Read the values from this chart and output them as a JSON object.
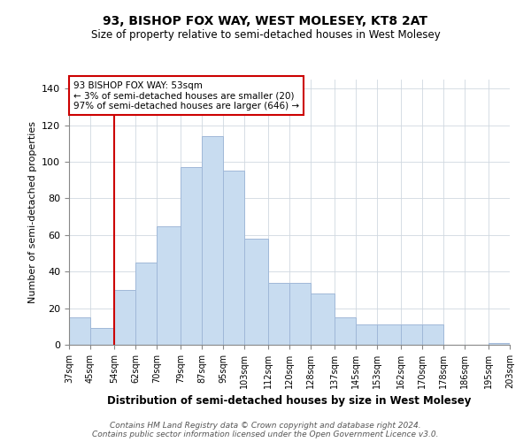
{
  "title": "93, BISHOP FOX WAY, WEST MOLESEY, KT8 2AT",
  "subtitle": "Size of property relative to semi-detached houses in West Molesey",
  "xlabel": "Distribution of semi-detached houses by size in West Molesey",
  "ylabel": "Number of semi-detached properties",
  "bar_color": "#c8dcf0",
  "bar_edge_color": "#a0b8d8",
  "vline_x": 54,
  "vline_color": "#cc0000",
  "annotation_title": "93 BISHOP FOX WAY: 53sqm",
  "annotation_line1": "← 3% of semi-detached houses are smaller (20)",
  "annotation_line2": "97% of semi-detached houses are larger (646) →",
  "annotation_box_edge": "#cc0000",
  "bins": [
    37,
    45,
    54,
    62,
    70,
    79,
    87,
    95,
    103,
    112,
    120,
    128,
    137,
    145,
    153,
    162,
    170,
    178,
    186,
    195,
    203
  ],
  "counts": [
    15,
    9,
    30,
    45,
    65,
    97,
    114,
    95,
    58,
    34,
    34,
    28,
    15,
    11,
    11,
    11,
    11,
    0,
    0,
    1
  ],
  "tick_labels": [
    "37sqm",
    "45sqm",
    "54sqm",
    "62sqm",
    "70sqm",
    "79sqm",
    "87sqm",
    "95sqm",
    "103sqm",
    "112sqm",
    "120sqm",
    "128sqm",
    "137sqm",
    "145sqm",
    "153sqm",
    "162sqm",
    "170sqm",
    "178sqm",
    "186sqm",
    "195sqm",
    "203sqm"
  ],
  "ylim": [
    0,
    145
  ],
  "yticks": [
    0,
    20,
    40,
    60,
    80,
    100,
    120,
    140
  ],
  "footer1": "Contains HM Land Registry data © Crown copyright and database right 2024.",
  "footer2": "Contains public sector information licensed under the Open Government Licence v3.0."
}
